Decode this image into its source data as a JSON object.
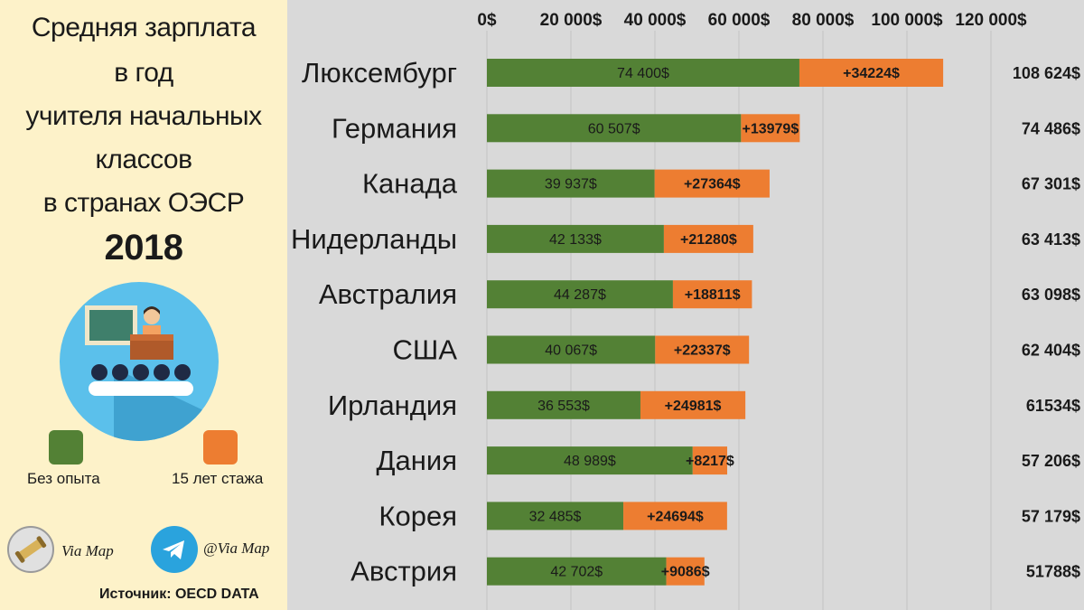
{
  "title": {
    "lines": [
      "Средняя зарплата",
      "в год",
      "учителя начальных",
      "классов",
      "в странах ОЭСР"
    ],
    "year": "2018"
  },
  "legend": [
    {
      "label": "Без опыта",
      "color": "#538135"
    },
    {
      "label": "15 лет стажа",
      "color": "#ed7d31"
    }
  ],
  "social": {
    "site_label": "Via Map",
    "telegram_label": "@Via Map"
  },
  "source": "Источник: OECD DATA",
  "colors": {
    "panel_bg": "#fdf2c9",
    "chart_bg": "#d9d9d9",
    "base": "#538135",
    "increment": "#ed7d31",
    "illustration_circle": "#5bc0eb"
  },
  "icons": [
    "teacher-classroom-icon",
    "scroll-icon",
    "telegram-icon"
  ],
  "chart_data": {
    "type": "bar",
    "orientation": "horizontal",
    "stacked": true,
    "xlim": [
      0,
      120000
    ],
    "x_ticks": [
      0,
      20000,
      40000,
      60000,
      80000,
      100000,
      120000
    ],
    "x_tick_labels": [
      "0$",
      "20 000$",
      "40 000$",
      "60 000$",
      "80 000$",
      "100 000$",
      "120 000$"
    ],
    "grid": true,
    "categories": [
      "Люксембург",
      "Германия",
      "Канада",
      "Нидерланды",
      "Австралия",
      "США",
      "Ирландия",
      "Дания",
      "Корея",
      "Австрия"
    ],
    "series": [
      {
        "name": "Без опыта",
        "values": [
          74400,
          60507,
          39937,
          42133,
          44287,
          40067,
          36553,
          48989,
          32485,
          42702
        ],
        "labels": [
          "74 400$",
          "60 507$",
          "39 937$",
          "42 133$",
          "44 287$",
          "40 067$",
          "36 553$",
          "48 989$",
          "32 485$",
          "42 702$"
        ]
      },
      {
        "name": "15 лет стажа",
        "values": [
          34224,
          13979,
          27364,
          21280,
          18811,
          22337,
          24981,
          8217,
          24694,
          9086
        ],
        "labels": [
          "+34224$",
          "+13979$",
          "+27364$",
          "+21280$",
          "+18811$",
          "+22337$",
          "+24981$",
          "+8217$",
          "+24694$",
          "+9086$"
        ]
      }
    ],
    "totals": [
      108624,
      74486,
      67301,
      63413,
      63098,
      62404,
      61534,
      57206,
      57179,
      51788
    ],
    "total_labels": [
      "108 624$",
      "74 486$",
      "67 301$",
      "63 413$",
      "63 098$",
      "62 404$",
      "61534$",
      "57 206$",
      "57 179$",
      "51788$"
    ]
  }
}
